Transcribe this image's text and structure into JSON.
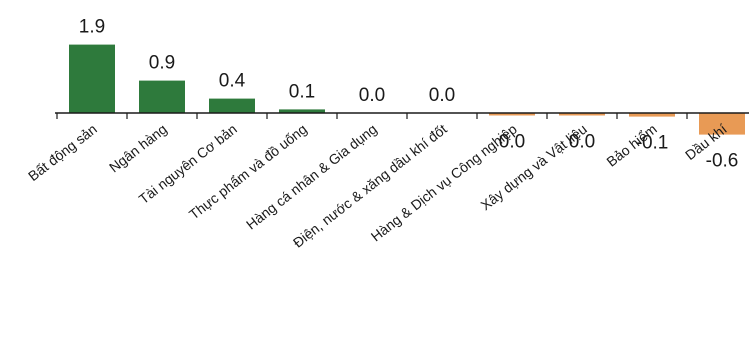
{
  "chart_data": {
    "type": "bar",
    "categories": [
      "Bất động sản",
      "Ngân hàng",
      "Tài nguyên Cơ bản",
      "Thực phẩm và đồ uống",
      "Hàng cá nhân & Gia dụng",
      "Điện, nước & xăng dầu khí đốt",
      "Hàng & Dịch vụ Công nghiệp",
      "Xây dựng và Vật liệu",
      "Bảo hiểm",
      "Dầu khí"
    ],
    "values": [
      1.9,
      0.9,
      0.4,
      0.1,
      0.0,
      0.0,
      -0.02,
      -0.02,
      -0.1,
      -0.6
    ],
    "value_labels": [
      "1.9",
      "0.9",
      "0.4",
      "0.1",
      "0.0",
      "0.0",
      "0.0",
      "0.0",
      "-0.1",
      "-0.6"
    ],
    "title": "",
    "xlabel": "",
    "ylabel": "",
    "grid": false,
    "legend": "none",
    "colors": {
      "positive": "#2e7a3c",
      "negative": "#e89a55",
      "axis": "#1a1a1a"
    }
  }
}
